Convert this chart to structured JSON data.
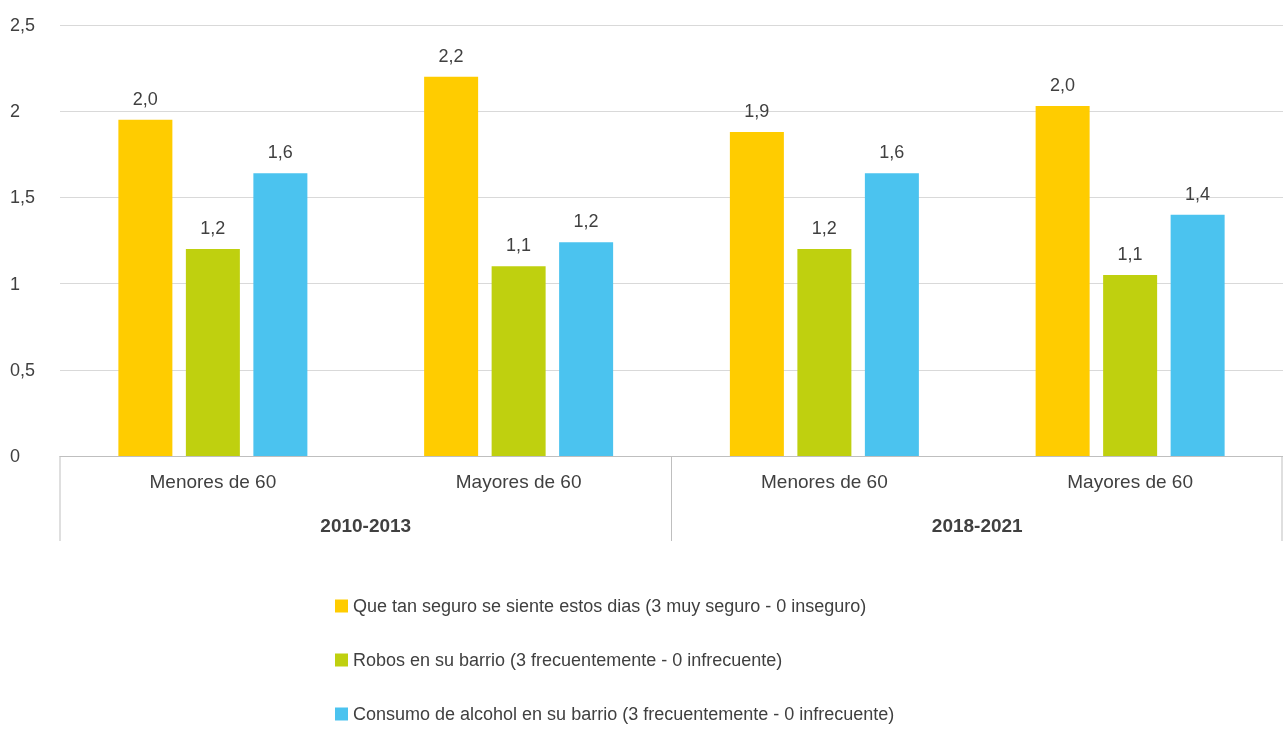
{
  "chart_data": {
    "type": "bar",
    "categories": [
      "Menores de 60",
      "Mayores de 60",
      "Menores de 60",
      "Mayores de 60"
    ],
    "series": [
      {
        "name": "Que tan seguro se siente estos dias (3 muy seguro - 0 inseguro)",
        "color": "#ffcc00",
        "values": [
          1.95,
          2.2,
          1.88,
          2.03
        ],
        "value_labels": [
          "2,0",
          "2,2",
          "1,9",
          "2,0"
        ]
      },
      {
        "name": "Robos en su barrio (3 frecuentemente - 0 infrecuente)",
        "color": "#bfd00f",
        "values": [
          1.2,
          1.1,
          1.2,
          1.05
        ],
        "value_labels": [
          "1,2",
          "1,1",
          "1,2",
          "1,1"
        ]
      },
      {
        "name": "Consumo de alcohol en su barrio (3 frecuentemente - 0 infrecuente)",
        "color": "#4bc3ef",
        "values": [
          1.64,
          1.24,
          1.64,
          1.4
        ],
        "value_labels": [
          "1,6",
          "1,2",
          "1,6",
          "1,4"
        ]
      }
    ],
    "annotations": [
      "2010-2013",
      "2018-2021"
    ],
    "ylim": [
      0,
      2.5
    ],
    "yticks": [
      0,
      {
        "value": 0.5,
        "label": "0,5"
      },
      1,
      {
        "value": 1.5,
        "label": "1,5"
      },
      2,
      {
        "value": 2.5,
        "label": "2,5"
      }
    ],
    "grid": true,
    "legend": "bottom"
  }
}
